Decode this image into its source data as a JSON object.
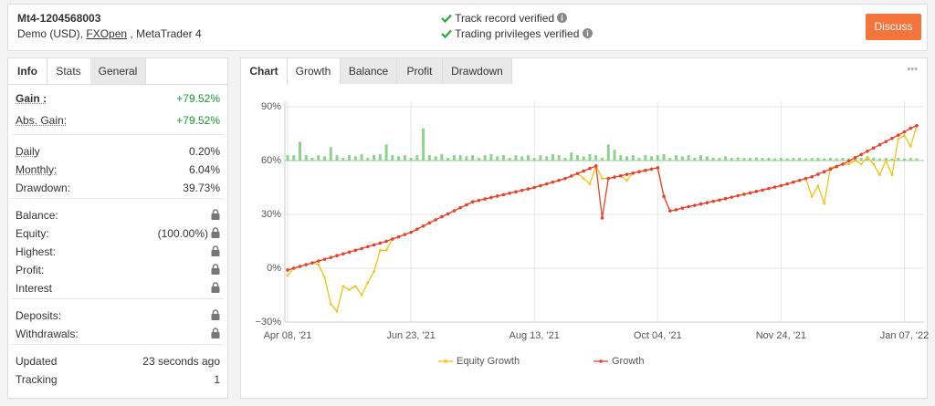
{
  "header": {
    "account": "Mt4-1204568003",
    "details_prefix": "Demo (USD),",
    "broker": "FXOpen",
    "details_suffix": ", MetaTrader 4",
    "verifications": [
      "Track record verified",
      "Trading privileges verified"
    ],
    "button": "Discuss"
  },
  "left_tabs": [
    "Info",
    "Stats",
    "General"
  ],
  "stats": [
    [
      {
        "label": "Gain :",
        "value": "+79.52%"
      },
      {
        "label": "Abs. Gain:",
        "value": "+79.52%"
      }
    ],
    [
      {
        "label": "Daily",
        "value": "0.20%"
      },
      {
        "label": "Monthly:",
        "value": "6.04%"
      },
      {
        "label": "Drawdown:",
        "value": "39.73%"
      }
    ],
    [
      {
        "label": "Balance:",
        "locked": true
      },
      {
        "label": "Equity:",
        "value": "(100.00%)",
        "locked": true
      },
      {
        "label": "Highest:",
        "locked": true
      },
      {
        "label": "Profit:",
        "locked": true
      },
      {
        "label": "Interest",
        "locked": true
      }
    ],
    [
      {
        "label": "Deposits:",
        "locked": true
      },
      {
        "label": "Withdrawals:",
        "locked": true
      }
    ],
    [
      {
        "label": "Updated",
        "value": "23 seconds ago"
      },
      {
        "label": "Tracking",
        "value": "1"
      }
    ]
  ],
  "chart_tabs": [
    "Chart",
    "Growth",
    "Balance",
    "Profit",
    "Drawdown"
  ],
  "menu": "•••",
  "chart_data": {
    "type": "line",
    "categories": [
      "Apr 08, '21",
      null,
      null,
      null,
      null,
      null,
      null,
      null,
      null,
      null,
      null,
      null,
      null,
      null,
      null,
      null,
      null,
      null,
      null,
      null,
      "Jun 23, '21",
      null,
      null,
      null,
      null,
      null,
      null,
      null,
      null,
      null,
      null,
      null,
      null,
      null,
      null,
      null,
      null,
      null,
      null,
      null,
      "Aug 13, '21",
      null,
      null,
      null,
      null,
      null,
      null,
      null,
      null,
      null,
      null,
      null,
      null,
      null,
      null,
      null,
      null,
      null,
      null,
      null,
      "Oct 04, '21",
      null,
      null,
      null,
      null,
      null,
      null,
      null,
      null,
      null,
      null,
      null,
      null,
      null,
      null,
      null,
      null,
      null,
      null,
      null,
      "Nov 24, '21",
      null,
      null,
      null,
      null,
      null,
      null,
      null,
      null,
      null,
      null,
      null,
      null,
      null,
      null,
      null,
      null,
      null,
      null,
      null,
      "Jan 07, '22",
      null,
      null
    ],
    "series": [
      {
        "name": "Equity Growth",
        "color": "#f5c211",
        "values": [
          -4,
          0,
          1,
          2,
          3,
          2,
          -5,
          -20,
          -24,
          -10,
          -12,
          -10,
          -15,
          -8,
          -2,
          10,
          10,
          16.3,
          17.5,
          18.8,
          20,
          21.8,
          23.5,
          25.3,
          27,
          28.7,
          30.3,
          32,
          33.7,
          35.3,
          37,
          37.8,
          38.6,
          39.4,
          40.2,
          41,
          41.8,
          42.6,
          43.4,
          44.2,
          45,
          46,
          47,
          48,
          49,
          50,
          51.4,
          52.8,
          50,
          47,
          57,
          50,
          50,
          50.8,
          51.5,
          49,
          53,
          53.8,
          54.5,
          55.3,
          56,
          40,
          32,
          32.6,
          33.5,
          34.3,
          35,
          35.8,
          36.5,
          37.3,
          38,
          38.8,
          39.6,
          40.4,
          41.2,
          42,
          42.8,
          43.6,
          44.4,
          45.2,
          46,
          47,
          48,
          49,
          50,
          40,
          46,
          36,
          56,
          57,
          58,
          58,
          60,
          58,
          62,
          58,
          52,
          60,
          52,
          72,
          74,
          68,
          79.5
        ]
      },
      {
        "name": "Growth",
        "color": "#e8412c",
        "values": [
          -1,
          0,
          1,
          2,
          3,
          4,
          5,
          6,
          7,
          8,
          9,
          10,
          11,
          12,
          13,
          14,
          15,
          16.3,
          17.5,
          18.8,
          20,
          21.8,
          23.5,
          25.3,
          27,
          28.7,
          30.3,
          32,
          33.7,
          35.3,
          37,
          37.8,
          38.6,
          39.4,
          40.2,
          41,
          41.8,
          42.6,
          43.4,
          44.2,
          45,
          46,
          47,
          48,
          49,
          50,
          51.4,
          52.8,
          54.2,
          55.6,
          57,
          28,
          50,
          50.8,
          51.5,
          52.3,
          53,
          53.8,
          54.5,
          55.3,
          56,
          40,
          32,
          32.6,
          33.5,
          34.3,
          35,
          35.8,
          36.5,
          37.3,
          38,
          38.8,
          39.6,
          40.4,
          41.2,
          42,
          42.8,
          43.6,
          44.4,
          45.2,
          46,
          47,
          48,
          49,
          50,
          51,
          52.4,
          53.8,
          55.2,
          56.6,
          58,
          59.8,
          61.6,
          63.4,
          65.2,
          67,
          68.8,
          70.6,
          72.4,
          74.2,
          76,
          78,
          79.5
        ]
      }
    ],
    "bars": {
      "color": "#8fd18f",
      "axis": "y2",
      "values": [
        0.1,
        0.1,
        0.35,
        0.1,
        0.05,
        0.1,
        0.08,
        0.25,
        0.1,
        0.05,
        0.1,
        0.08,
        0.12,
        0.05,
        0.1,
        0.12,
        0.3,
        0.1,
        0.08,
        0.1,
        0.05,
        0.1,
        0.6,
        0.1,
        0.08,
        0.12,
        0.05,
        0.1,
        0.1,
        0.08,
        0.1,
        0.05,
        0.1,
        0.12,
        0.08,
        0.1,
        0.05,
        0.1,
        0.08,
        0.1,
        0.05,
        0.1,
        0.08,
        0.12,
        0.1,
        0.05,
        0.15,
        0.1,
        0.08,
        0.12,
        0.1,
        0.05,
        0.3,
        0.2,
        0.1,
        0.08,
        0.1,
        0.05,
        0.1,
        0.08,
        0.1,
        0.12,
        0.05,
        0.1,
        0.08,
        0.1,
        0.05,
        0.1,
        0.08,
        0.05,
        0.05,
        0.08,
        0.05,
        0.06,
        0.05,
        0.05,
        0.06,
        0.05,
        0.05,
        0.04,
        0.05,
        0.04,
        0.05,
        0.05,
        0.04,
        0.05,
        0.05,
        0.04,
        0.05,
        0.04,
        0.05,
        0.04,
        0.05,
        0.05,
        0.04,
        0.05,
        0.04,
        0.05,
        0.04,
        0.05,
        0.04,
        0.05,
        0.04
      ]
    },
    "ylim": [
      -30,
      90
    ],
    "yticks": [
      {
        "value": -30,
        "label": "−30%"
      },
      {
        "value": 0,
        "label": "0%"
      },
      {
        "value": 30,
        "label": "30%"
      },
      {
        "value": 60,
        "label": "60%"
      },
      {
        "value": 90,
        "label": "90%"
      }
    ],
    "y2lim": [
      -3,
      1
    ],
    "grid": true,
    "legend": "bottom"
  }
}
